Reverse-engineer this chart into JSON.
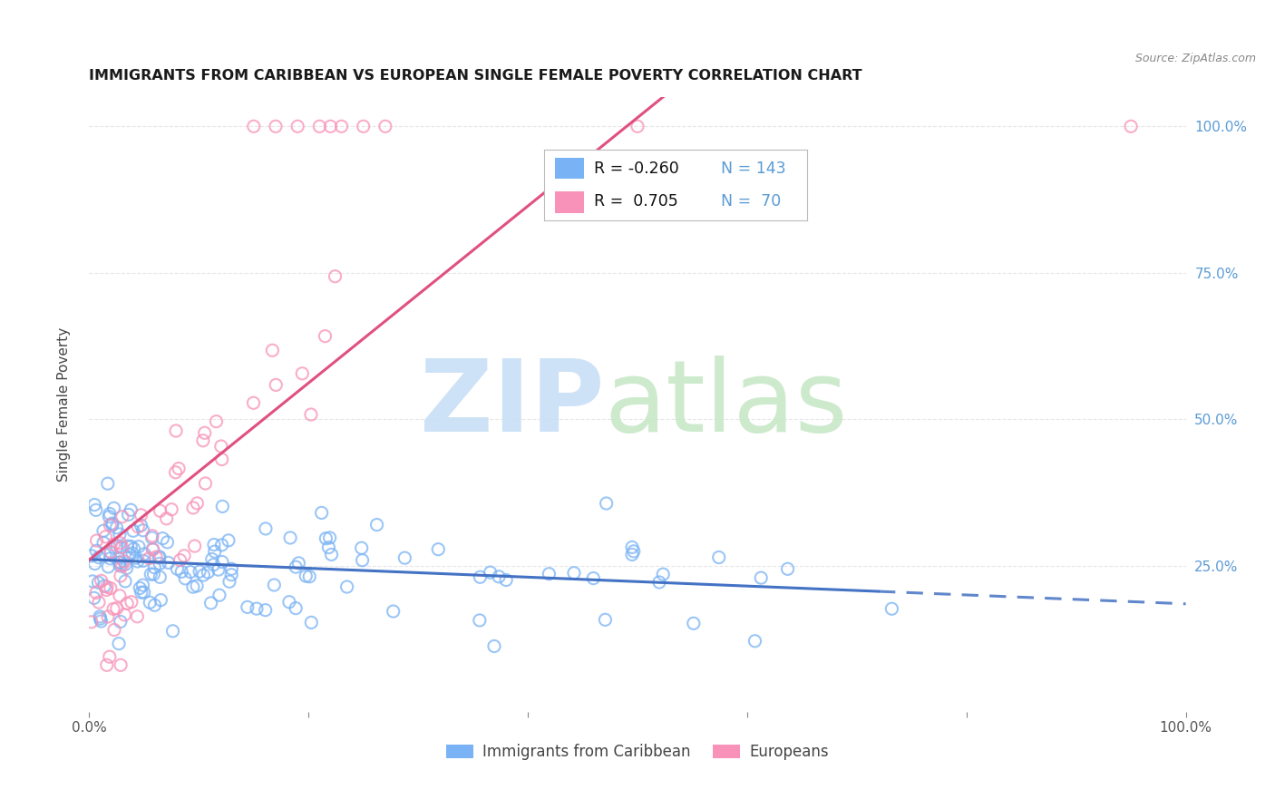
{
  "title": "IMMIGRANTS FROM CARIBBEAN VS EUROPEAN SINGLE FEMALE POVERTY CORRELATION CHART",
  "source": "Source: ZipAtlas.com",
  "ylabel": "Single Female Poverty",
  "color_caribbean": "#7ab3f5",
  "color_european": "#f892b8",
  "color_caribbean_line": "#4472c4",
  "color_european_line": "#e05080",
  "color_label_right": "#5b9bd5",
  "background_color": "#ffffff",
  "grid_color": "#e0e0e0",
  "watermark_zip_color": "#c8dff5",
  "watermark_atlas_color": "#c8e8c8",
  "legend_r1": "R = -0.260",
  "legend_n1": "N = 143",
  "legend_r2": "R =  0.705",
  "legend_n2": "N =  70",
  "legend_label1": "Immigrants from Caribbean",
  "legend_label2": "Europeans"
}
